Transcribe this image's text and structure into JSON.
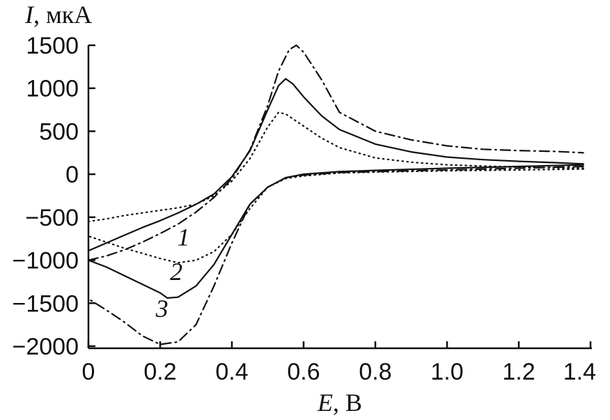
{
  "chart_data": {
    "type": "line",
    "ylabel_italic": "I",
    "ylabel_rest": ", мкА",
    "xlabel_italic": "E",
    "xlabel_rest": ", В",
    "xlim": [
      0,
      1.4
    ],
    "ylim": [
      -2000,
      1500
    ],
    "x_ticks": [
      0,
      0.2,
      0.4,
      0.6,
      0.8,
      1.0,
      1.2,
      1.4
    ],
    "x_tick_labels": [
      "0",
      "0.2",
      "0.4",
      "0.6",
      "0.8",
      "1.0",
      "1.2",
      "1.4"
    ],
    "y_ticks": [
      1500,
      1000,
      500,
      0,
      -500,
      -1000,
      -1500,
      -2000
    ],
    "y_tick_labels": [
      "1500",
      "1000",
      "500",
      "0",
      "−500",
      "−1000",
      "−1500",
      "−2000"
    ],
    "grid": false,
    "legend": "none",
    "series": [
      {
        "name": "1",
        "style": "dotted",
        "forward": [
          [
            0,
            -550
          ],
          [
            0.05,
            -520
          ],
          [
            0.1,
            -480
          ],
          [
            0.15,
            -450
          ],
          [
            0.2,
            -420
          ],
          [
            0.25,
            -390
          ],
          [
            0.3,
            -350
          ],
          [
            0.35,
            -250
          ],
          [
            0.4,
            -80
          ],
          [
            0.45,
            180
          ],
          [
            0.5,
            550
          ],
          [
            0.53,
            720
          ],
          [
            0.55,
            700
          ],
          [
            0.6,
            560
          ],
          [
            0.65,
            420
          ],
          [
            0.7,
            310
          ],
          [
            0.8,
            190
          ],
          [
            0.9,
            140
          ],
          [
            1.0,
            110
          ],
          [
            1.1,
            95
          ],
          [
            1.2,
            85
          ],
          [
            1.3,
            75
          ],
          [
            1.38,
            70
          ]
        ],
        "reverse": [
          [
            1.38,
            60
          ],
          [
            1.2,
            50
          ],
          [
            1.0,
            40
          ],
          [
            0.8,
            25
          ],
          [
            0.7,
            15
          ],
          [
            0.6,
            -20
          ],
          [
            0.55,
            -50
          ],
          [
            0.5,
            -150
          ],
          [
            0.45,
            -400
          ],
          [
            0.4,
            -700
          ],
          [
            0.35,
            -900
          ],
          [
            0.3,
            -1000
          ],
          [
            0.25,
            -1030
          ],
          [
            0.2,
            -980
          ],
          [
            0.15,
            -920
          ],
          [
            0.1,
            -860
          ],
          [
            0.05,
            -790
          ],
          [
            0,
            -720
          ]
        ]
      },
      {
        "name": "2",
        "style": "solid",
        "forward": [
          [
            0,
            -890
          ],
          [
            0.05,
            -800
          ],
          [
            0.1,
            -710
          ],
          [
            0.15,
            -620
          ],
          [
            0.2,
            -540
          ],
          [
            0.25,
            -450
          ],
          [
            0.3,
            -350
          ],
          [
            0.35,
            -230
          ],
          [
            0.4,
            -30
          ],
          [
            0.45,
            270
          ],
          [
            0.5,
            750
          ],
          [
            0.53,
            1030
          ],
          [
            0.55,
            1110
          ],
          [
            0.57,
            1050
          ],
          [
            0.6,
            900
          ],
          [
            0.65,
            680
          ],
          [
            0.7,
            520
          ],
          [
            0.8,
            350
          ],
          [
            0.9,
            260
          ],
          [
            1.0,
            200
          ],
          [
            1.1,
            170
          ],
          [
            1.2,
            150
          ],
          [
            1.3,
            135
          ],
          [
            1.38,
            120
          ]
        ],
        "reverse": [
          [
            1.38,
            110
          ],
          [
            1.2,
            90
          ],
          [
            1.0,
            70
          ],
          [
            0.8,
            45
          ],
          [
            0.7,
            30
          ],
          [
            0.6,
            0
          ],
          [
            0.55,
            -40
          ],
          [
            0.5,
            -150
          ],
          [
            0.45,
            -350
          ],
          [
            0.4,
            -700
          ],
          [
            0.35,
            -1050
          ],
          [
            0.3,
            -1300
          ],
          [
            0.25,
            -1430
          ],
          [
            0.22,
            -1440
          ],
          [
            0.2,
            -1380
          ],
          [
            0.15,
            -1280
          ],
          [
            0.1,
            -1180
          ],
          [
            0.05,
            -1080
          ],
          [
            0,
            -1000
          ]
        ]
      },
      {
        "name": "3",
        "style": "dash-dot",
        "forward": [
          [
            0,
            -1000
          ],
          [
            0.05,
            -950
          ],
          [
            0.1,
            -880
          ],
          [
            0.15,
            -790
          ],
          [
            0.2,
            -690
          ],
          [
            0.25,
            -580
          ],
          [
            0.3,
            -440
          ],
          [
            0.35,
            -270
          ],
          [
            0.4,
            -50
          ],
          [
            0.45,
            280
          ],
          [
            0.5,
            800
          ],
          [
            0.53,
            1200
          ],
          [
            0.56,
            1450
          ],
          [
            0.58,
            1500
          ],
          [
            0.6,
            1420
          ],
          [
            0.65,
            1100
          ],
          [
            0.7,
            720
          ],
          [
            0.8,
            500
          ],
          [
            0.9,
            400
          ],
          [
            1.0,
            330
          ],
          [
            1.1,
            290
          ],
          [
            1.2,
            275
          ],
          [
            1.3,
            265
          ],
          [
            1.38,
            250
          ]
        ],
        "reverse": [
          [
            1.38,
            90
          ],
          [
            1.2,
            70
          ],
          [
            1.0,
            50
          ],
          [
            0.8,
            30
          ],
          [
            0.7,
            20
          ],
          [
            0.6,
            -10
          ],
          [
            0.55,
            -40
          ],
          [
            0.5,
            -150
          ],
          [
            0.45,
            -350
          ],
          [
            0.4,
            -800
          ],
          [
            0.35,
            -1300
          ],
          [
            0.3,
            -1750
          ],
          [
            0.25,
            -1950
          ],
          [
            0.2,
            -1980
          ],
          [
            0.15,
            -1880
          ],
          [
            0.1,
            -1720
          ],
          [
            0.05,
            -1580
          ],
          [
            0,
            -1450
          ]
        ]
      }
    ],
    "curve_labels": [
      {
        "text": "1",
        "x": 0.265,
        "y": -830
      },
      {
        "text": "2",
        "x": 0.245,
        "y": -1230
      },
      {
        "text": "3",
        "x": 0.205,
        "y": -1660
      }
    ]
  }
}
